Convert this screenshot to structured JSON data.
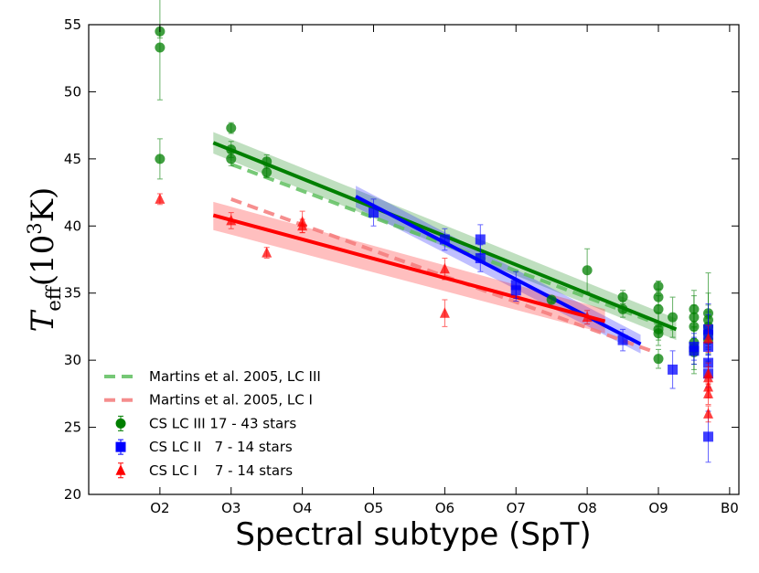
{
  "chart_data": {
    "type": "scatter",
    "xlabel": "Spectral subtype (SpT)",
    "ylabel_parts": [
      "T",
      "eff",
      "(10",
      "3",
      "K)"
    ],
    "xlim": [
      1,
      10.13
    ],
    "ylim": [
      20,
      55
    ],
    "xticks": [
      {
        "value": 2,
        "label": "O2"
      },
      {
        "value": 3,
        "label": "O3"
      },
      {
        "value": 4,
        "label": "O4"
      },
      {
        "value": 5,
        "label": "O5"
      },
      {
        "value": 6,
        "label": "O6"
      },
      {
        "value": 7,
        "label": "O7"
      },
      {
        "value": 8,
        "label": "O8"
      },
      {
        "value": 9,
        "label": "O9"
      },
      {
        "value": 10,
        "label": "B0"
      }
    ],
    "yticks": [
      20,
      25,
      30,
      35,
      40,
      45,
      50,
      55
    ],
    "legend": "lower left",
    "fits": [
      {
        "name": "Martins et al. 2005, LC III",
        "color": "#5fbf5f",
        "style": "dashed",
        "x": [
          3,
          9.2
        ],
        "values": [
          44.6,
          32.3
        ]
      },
      {
        "name": "Martins et al. 2005, LC I",
        "color": "#f47a7a",
        "style": "dashed",
        "x": [
          3,
          8.95
        ],
        "values": [
          42.0,
          30.6
        ]
      },
      {
        "color": "#007f00",
        "style": "solid",
        "x": [
          2.75,
          9.25
        ],
        "values": [
          46.2,
          32.3
        ],
        "lower": [
          45.4,
          31.5
        ],
        "upper": [
          47.0,
          33.1
        ]
      },
      {
        "color": "#0000ff",
        "style": "solid",
        "x": [
          4.75,
          8.75
        ],
        "values": [
          42.2,
          31.2
        ],
        "lower": [
          41.4,
          30.5
        ],
        "upper": [
          43.0,
          31.9
        ]
      },
      {
        "color": "#ff0000",
        "style": "solid",
        "x": [
          2.75,
          8.25
        ],
        "values": [
          40.8,
          32.9
        ],
        "lower": [
          39.7,
          32.0
        ],
        "upper": [
          41.8,
          33.8
        ]
      }
    ],
    "series": [
      {
        "name": "CS LC III 17 - 43 stars",
        "color": "#007f00",
        "marker": "circle",
        "x": [
          2,
          2,
          2,
          3,
          3,
          3,
          3.5,
          3.5,
          7.5,
          8,
          8.5,
          8.5,
          9,
          9,
          9,
          9,
          9,
          9,
          9.2,
          9.5,
          9.5,
          9.5,
          9.5,
          9.5,
          9.5,
          9.7,
          9.7,
          9.7,
          9.7,
          9.7
        ],
        "values": [
          54.5,
          53.3,
          45.0,
          47.3,
          45.7,
          45.0,
          44.8,
          44.0,
          34.5,
          36.7,
          34.7,
          33.8,
          35.5,
          34.7,
          33.8,
          32.3,
          32.0,
          30.1,
          33.2,
          33.8,
          33.2,
          32.5,
          31.3,
          30.9,
          30.6,
          33.5,
          33.0,
          32.5,
          32.0,
          31.5
        ],
        "errors": [
          0.5,
          3.9,
          1.5,
          0.4,
          0.6,
          0.5,
          0.5,
          0.4,
          0.2,
          1.6,
          0.5,
          0.6,
          0.4,
          0.6,
          1.0,
          1.2,
          0.5,
          0.7,
          1.5,
          1.4,
          1.6,
          1.6,
          1.6,
          1.6,
          1.6,
          3.0,
          2.0,
          1.6,
          1.6,
          1.6
        ]
      },
      {
        "name": "CS LC II   7 - 14 stars",
        "color": "#0000ff",
        "marker": "square",
        "x": [
          5,
          6,
          6.5,
          6.5,
          7,
          7,
          8.5,
          9.2,
          9.5,
          9.5,
          9.7,
          9.7,
          9.7,
          9.7,
          9.7,
          9.7
        ],
        "values": [
          41.0,
          39.0,
          39.0,
          37.6,
          35.6,
          35.2,
          31.5,
          29.3,
          31.0,
          30.7,
          32.3,
          31.9,
          31.0,
          29.8,
          29.0,
          24.3
        ],
        "errors": [
          1.0,
          0.8,
          1.1,
          1.0,
          1.0,
          0.8,
          0.8,
          1.4,
          1.0,
          1.0,
          1.9,
          1.5,
          1.2,
          1.0,
          1.0,
          1.9
        ]
      },
      {
        "name": "CS LC I    7 - 14 stars",
        "color": "#ff0000",
        "marker": "triangle",
        "x": [
          2,
          3,
          3.5,
          4,
          4,
          6,
          6,
          8,
          9.7,
          9.7,
          9.7,
          9.7,
          9.7,
          9.7
        ],
        "values": [
          42.0,
          40.4,
          38.0,
          40.3,
          40.0,
          36.8,
          33.5,
          33.2,
          31.6,
          29.0,
          28.7,
          28.0,
          27.5,
          26.0
        ],
        "errors": [
          0.4,
          0.6,
          0.4,
          0.8,
          0.5,
          0.8,
          1.0,
          0.5,
          1.0,
          0.8,
          0.8,
          0.8,
          0.8,
          0.6
        ]
      }
    ]
  }
}
